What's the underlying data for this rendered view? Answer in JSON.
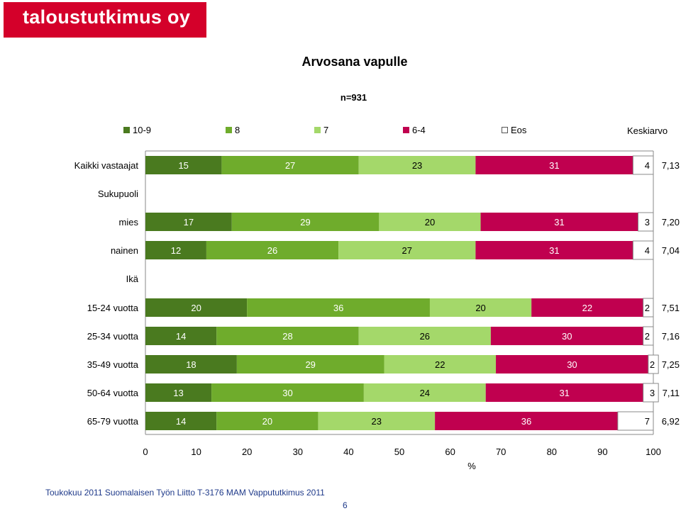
{
  "logo": {
    "text": "taloustutkimus oy"
  },
  "chart_data": {
    "type": "bar",
    "stacked": true,
    "orientation": "horizontal",
    "title": "Arvosana vapulle",
    "subtitle": "n=931",
    "xlabel": "%",
    "xlim": [
      0,
      100
    ],
    "xticks": [
      "0",
      "10",
      "20",
      "30",
      "40",
      "50",
      "60",
      "70",
      "80",
      "90",
      "100"
    ],
    "mean_header": "Keskiarvo",
    "series": [
      {
        "name": "10-9",
        "color": "#4a7a1f"
      },
      {
        "name": "8",
        "color": "#6fac2c"
      },
      {
        "name": "7",
        "color": "#a4d86a"
      },
      {
        "name": "6-4",
        "color": "#c0004f"
      },
      {
        "name": "Eos",
        "color": "#ffffff"
      }
    ],
    "rows": [
      {
        "label": "Kaikki vastaajat",
        "values": [
          15,
          27,
          23,
          31,
          4
        ],
        "mean": "7,13"
      },
      {
        "label": "Sukupuoli",
        "group_header": true
      },
      {
        "label": "mies",
        "values": [
          17,
          29,
          20,
          31,
          3
        ],
        "mean": "7,20"
      },
      {
        "label": "nainen",
        "values": [
          12,
          26,
          27,
          31,
          4
        ],
        "mean": "7,04"
      },
      {
        "label": "Ikä",
        "group_header": true
      },
      {
        "label": "15-24 vuotta",
        "values": [
          20,
          36,
          20,
          22,
          2
        ],
        "mean": "7,51"
      },
      {
        "label": "25-34 vuotta",
        "values": [
          14,
          28,
          26,
          30,
          2
        ],
        "mean": "7,16"
      },
      {
        "label": "35-49 vuotta",
        "values": [
          18,
          29,
          22,
          30,
          2
        ],
        "mean": "7,25"
      },
      {
        "label": "50-64 vuotta",
        "values": [
          13,
          30,
          24,
          31,
          3
        ],
        "mean": "7,11"
      },
      {
        "label": "65-79 vuotta",
        "values": [
          14,
          20,
          23,
          36,
          7
        ],
        "mean": "6,92"
      }
    ]
  },
  "footer": {
    "text": "Toukokuu 2011  Suomalaisen Työn Liitto  T-3176 MAM  Vappututkimus 2011",
    "page_number": "6"
  }
}
